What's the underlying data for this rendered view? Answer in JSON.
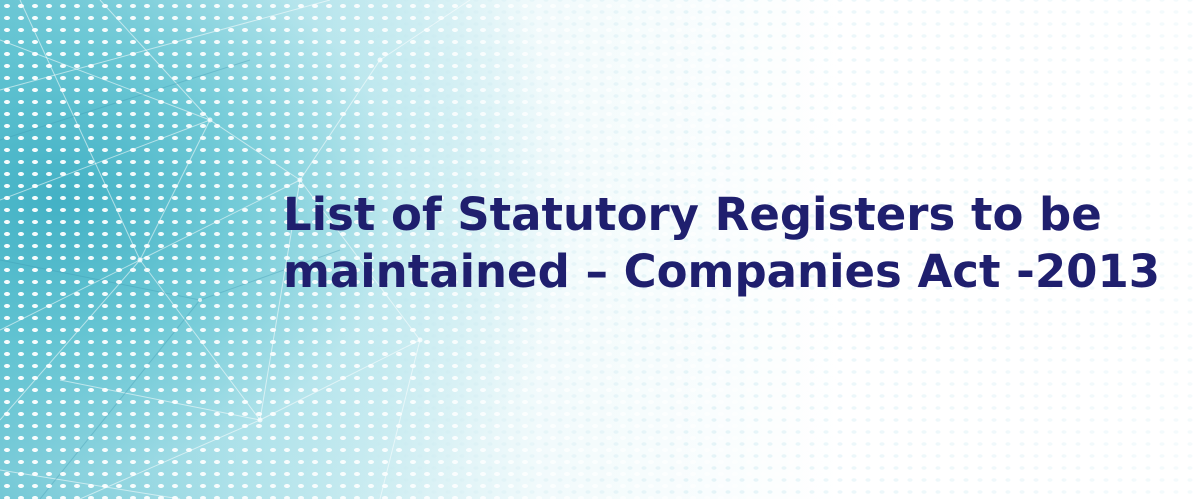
{
  "banner": {
    "title_line_1": "List of Statutory Registers to be",
    "title_line_2": "maintained – Companies Act -2013",
    "title_color": "#1f1f6e",
    "accent_color": "#46b4c6"
  }
}
